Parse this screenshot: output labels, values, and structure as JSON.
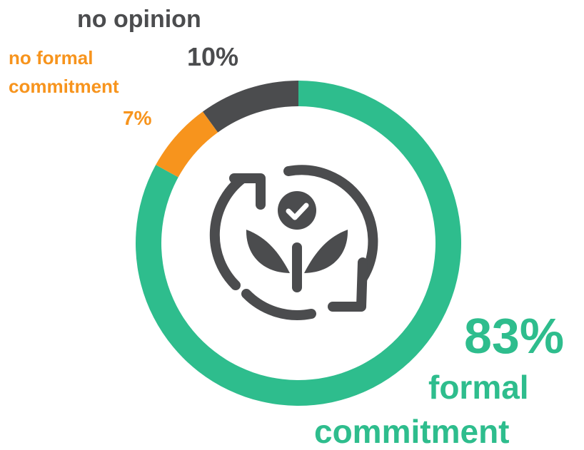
{
  "chart_data": {
    "type": "pie",
    "variant": "donut",
    "categories": [
      "formal commitment",
      "no formal commitment",
      "no opinion"
    ],
    "values": [
      83,
      7,
      10
    ],
    "unit": "%",
    "colors": [
      "#2ebd8d",
      "#f7941d",
      "#4b4c4e"
    ],
    "labels": {
      "formal": {
        "pct": "83%",
        "name_line1": "formal",
        "name_line2": "commitment"
      },
      "no_formal": {
        "pct": "7%",
        "name_line1": "no formal",
        "name_line2": "commitment"
      },
      "no_opinion": {
        "pct": "10%",
        "name": "no opinion"
      }
    },
    "center_icon": "sustainability-cycle-icon",
    "icon_color": "#4b4c4e"
  }
}
